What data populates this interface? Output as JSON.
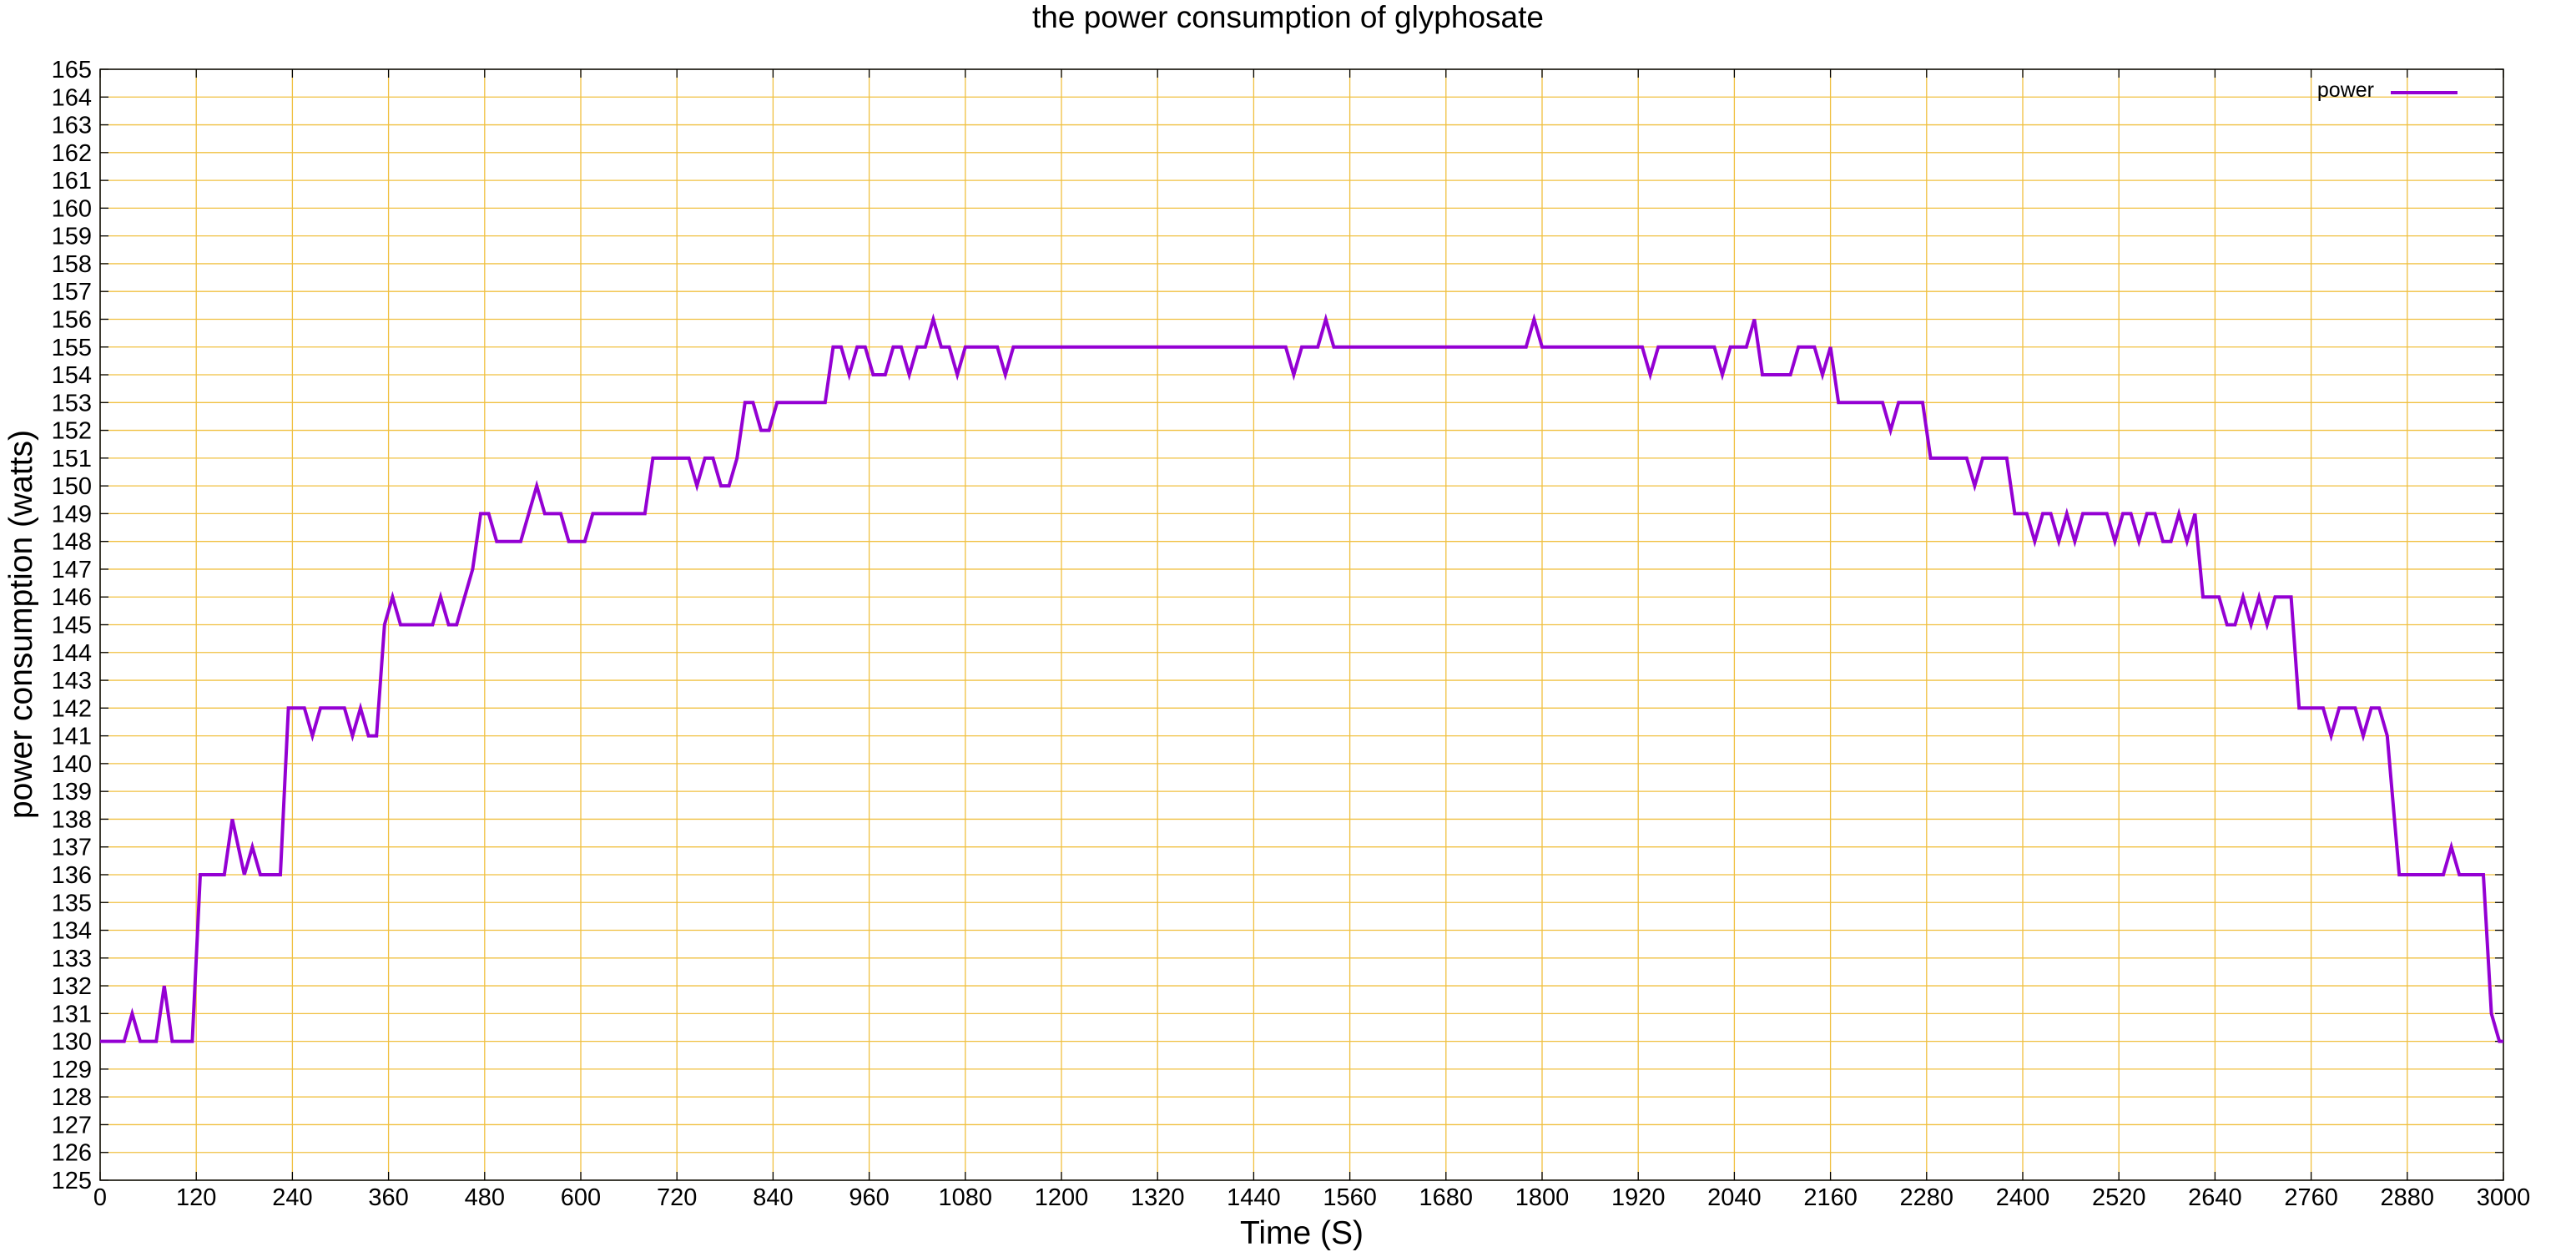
{
  "chart_data": {
    "type": "line",
    "title": "the power consumption of glyphosate",
    "xlabel": "Time (S)",
    "ylabel": "power consumption (watts)",
    "xlim": [
      0,
      3000
    ],
    "ylim": [
      125,
      165
    ],
    "xticks": [
      0,
      120,
      240,
      360,
      480,
      600,
      720,
      840,
      960,
      1080,
      1200,
      1320,
      1440,
      1560,
      1680,
      1800,
      1920,
      2040,
      2160,
      2280,
      2400,
      2520,
      2640,
      2760,
      2880,
      3000
    ],
    "yticks": [
      125,
      126,
      127,
      128,
      129,
      130,
      131,
      132,
      133,
      134,
      135,
      136,
      137,
      138,
      139,
      140,
      141,
      142,
      143,
      144,
      145,
      146,
      147,
      148,
      149,
      150,
      151,
      152,
      153,
      154,
      155,
      156,
      157,
      158,
      159,
      160,
      161,
      162,
      163,
      164,
      165
    ],
    "grid": true,
    "grid_color": "#f0c040",
    "legend_position": "top-right",
    "series": [
      {
        "name": "power",
        "color": "#9400d3",
        "points": [
          [
            0,
            130
          ],
          [
            30,
            130
          ],
          [
            40,
            131
          ],
          [
            50,
            130
          ],
          [
            70,
            130
          ],
          [
            80,
            132
          ],
          [
            90,
            130
          ],
          [
            115,
            130
          ],
          [
            125,
            136
          ],
          [
            155,
            136
          ],
          [
            165,
            138
          ],
          [
            180,
            136
          ],
          [
            190,
            137
          ],
          [
            200,
            136
          ],
          [
            225,
            136
          ],
          [
            235,
            142
          ],
          [
            255,
            142
          ],
          [
            265,
            141
          ],
          [
            275,
            142
          ],
          [
            305,
            142
          ],
          [
            315,
            141
          ],
          [
            325,
            142
          ],
          [
            335,
            141
          ],
          [
            345,
            141
          ],
          [
            355,
            145
          ],
          [
            365,
            146
          ],
          [
            375,
            145
          ],
          [
            415,
            145
          ],
          [
            425,
            146
          ],
          [
            435,
            145
          ],
          [
            445,
            145
          ],
          [
            465,
            147
          ],
          [
            475,
            149
          ],
          [
            485,
            149
          ],
          [
            495,
            148
          ],
          [
            525,
            148
          ],
          [
            545,
            150
          ],
          [
            555,
            149
          ],
          [
            575,
            149
          ],
          [
            585,
            148
          ],
          [
            605,
            148
          ],
          [
            615,
            149
          ],
          [
            680,
            149
          ],
          [
            690,
            151
          ],
          [
            735,
            151
          ],
          [
            745,
            150
          ],
          [
            755,
            151
          ],
          [
            765,
            151
          ],
          [
            775,
            150
          ],
          [
            785,
            150
          ],
          [
            795,
            151
          ],
          [
            805,
            153
          ],
          [
            815,
            153
          ],
          [
            825,
            152
          ],
          [
            835,
            152
          ],
          [
            845,
            153
          ],
          [
            905,
            153
          ],
          [
            915,
            155
          ],
          [
            925,
            155
          ],
          [
            935,
            154
          ],
          [
            945,
            155
          ],
          [
            955,
            155
          ],
          [
            965,
            154
          ],
          [
            980,
            154
          ],
          [
            990,
            155
          ],
          [
            1000,
            155
          ],
          [
            1010,
            154
          ],
          [
            1020,
            155
          ],
          [
            1030,
            155
          ],
          [
            1040,
            156
          ],
          [
            1050,
            155
          ],
          [
            1060,
            155
          ],
          [
            1070,
            154
          ],
          [
            1080,
            155
          ],
          [
            1120,
            155
          ],
          [
            1130,
            154
          ],
          [
            1140,
            155
          ],
          [
            1480,
            155
          ],
          [
            1490,
            154
          ],
          [
            1500,
            155
          ],
          [
            1520,
            155
          ],
          [
            1530,
            156
          ],
          [
            1540,
            155
          ],
          [
            1780,
            155
          ],
          [
            1790,
            156
          ],
          [
            1800,
            155
          ],
          [
            1925,
            155
          ],
          [
            1935,
            154
          ],
          [
            1945,
            155
          ],
          [
            2015,
            155
          ],
          [
            2025,
            154
          ],
          [
            2035,
            155
          ],
          [
            2055,
            155
          ],
          [
            2065,
            156
          ],
          [
            2075,
            154
          ],
          [
            2110,
            154
          ],
          [
            2120,
            155
          ],
          [
            2140,
            155
          ],
          [
            2150,
            154
          ],
          [
            2160,
            155
          ],
          [
            2170,
            153
          ],
          [
            2225,
            153
          ],
          [
            2235,
            152
          ],
          [
            2245,
            153
          ],
          [
            2275,
            153
          ],
          [
            2285,
            151
          ],
          [
            2330,
            151
          ],
          [
            2340,
            150
          ],
          [
            2350,
            151
          ],
          [
            2380,
            151
          ],
          [
            2390,
            149
          ],
          [
            2405,
            149
          ],
          [
            2415,
            148
          ],
          [
            2425,
            149
          ],
          [
            2435,
            149
          ],
          [
            2445,
            148
          ],
          [
            2455,
            149
          ],
          [
            2465,
            148
          ],
          [
            2475,
            149
          ],
          [
            2505,
            149
          ],
          [
            2515,
            148
          ],
          [
            2525,
            149
          ],
          [
            2535,
            149
          ],
          [
            2545,
            148
          ],
          [
            2555,
            149
          ],
          [
            2565,
            149
          ],
          [
            2575,
            148
          ],
          [
            2585,
            148
          ],
          [
            2595,
            149
          ],
          [
            2605,
            148
          ],
          [
            2615,
            149
          ],
          [
            2625,
            146
          ],
          [
            2645,
            146
          ],
          [
            2655,
            145
          ],
          [
            2665,
            145
          ],
          [
            2675,
            146
          ],
          [
            2685,
            145
          ],
          [
            2695,
            146
          ],
          [
            2705,
            145
          ],
          [
            2715,
            146
          ],
          [
            2735,
            146
          ],
          [
            2745,
            142
          ],
          [
            2775,
            142
          ],
          [
            2785,
            141
          ],
          [
            2795,
            142
          ],
          [
            2815,
            142
          ],
          [
            2825,
            141
          ],
          [
            2835,
            142
          ],
          [
            2845,
            142
          ],
          [
            2855,
            141
          ],
          [
            2870,
            136
          ],
          [
            2925,
            136
          ],
          [
            2935,
            137
          ],
          [
            2945,
            136
          ],
          [
            2975,
            136
          ],
          [
            2985,
            131
          ],
          [
            2995,
            130
          ],
          [
            3000,
            130
          ]
        ]
      }
    ]
  }
}
